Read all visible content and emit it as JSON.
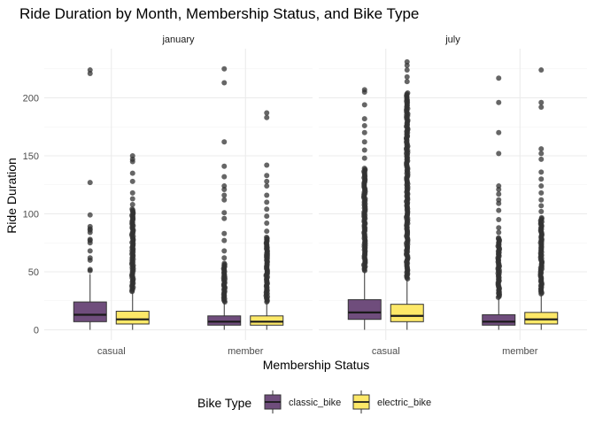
{
  "chart_data": {
    "type": "boxplot",
    "title": "Ride Duration by Month, Membership Status, and Bike Type",
    "xlabel": "Membership Status",
    "ylabel": "Ride Duration",
    "ylim": [
      -8,
      235
    ],
    "yticks": [
      0,
      50,
      100,
      150,
      200
    ],
    "categories": [
      "casual",
      "member"
    ],
    "facets": [
      "january",
      "july"
    ],
    "grid": true,
    "legend": {
      "title": "Bike Type",
      "position": "bottom",
      "items": [
        {
          "label": "classic_bike",
          "color": "#6f4d7c"
        },
        {
          "label": "electric_bike",
          "color": "#fde868"
        }
      ]
    },
    "series": [
      {
        "name": "classic_bike",
        "color": "#6f4d7c"
      },
      {
        "name": "electric_bike",
        "color": "#fde868"
      }
    ],
    "panels": [
      {
        "facet": "january",
        "boxes": [
          {
            "category": "casual",
            "series": "classic_bike",
            "min": 0,
            "q1": 7,
            "median": 13,
            "q3": 24,
            "whisker_high": 48,
            "outliers": [
              51,
              52,
              60,
              62,
              68,
              75,
              77,
              78,
              84,
              86,
              87,
              89,
              99,
              127,
              221,
              224
            ]
          },
          {
            "category": "casual",
            "series": "electric_bike",
            "min": 0,
            "q1": 5,
            "median": 9,
            "q3": 16,
            "whisker_high": 32,
            "outliers_dense": [
              33,
              105
            ],
            "outliers": [
              108,
              113,
              118,
              128,
              135,
              145,
              147,
              150
            ]
          },
          {
            "category": "member",
            "series": "classic_bike",
            "min": 0,
            "q1": 4,
            "median": 7,
            "q3": 12,
            "whisker_high": 23,
            "outliers_dense": [
              24,
              58
            ],
            "outliers": [
              62,
              68,
              77,
              83,
              96,
              101,
              112,
              116,
              121,
              124,
              132,
              141,
              162,
              213,
              225
            ]
          },
          {
            "category": "member",
            "series": "electric_bike",
            "min": 0,
            "q1": 4,
            "median": 7,
            "q3": 12,
            "whisker_high": 23,
            "outliers_dense": [
              24,
              80
            ],
            "outliers": [
              85,
              92,
              98,
              104,
              110,
              116,
              124,
              128,
              133,
              142,
              183,
              187
            ]
          }
        ]
      },
      {
        "facet": "july",
        "boxes": [
          {
            "category": "casual",
            "series": "classic_bike",
            "min": 0,
            "q1": 9,
            "median": 15,
            "q3": 26,
            "whisker_high": 50,
            "outliers_dense": [
              51,
              140
            ],
            "outliers": [
              148,
              155,
              162,
              170,
              176,
              182,
              194,
              205,
              207
            ]
          },
          {
            "category": "casual",
            "series": "electric_bike",
            "min": 0,
            "q1": 7,
            "median": 12,
            "q3": 22,
            "whisker_high": 43,
            "outliers_dense": [
              44,
              205
            ],
            "outliers": [
              214,
              218,
              224,
              228,
              231
            ]
          },
          {
            "category": "member",
            "series": "classic_bike",
            "min": 0,
            "q1": 4,
            "median": 7,
            "q3": 13,
            "whisker_high": 27,
            "outliers_dense": [
              28,
              80
            ],
            "outliers": [
              84,
              88,
              95,
              103,
              109,
              112,
              117,
              121,
              124,
              152,
              170,
              196,
              217
            ]
          },
          {
            "category": "member",
            "series": "electric_bike",
            "min": 0,
            "q1": 5,
            "median": 9,
            "q3": 15,
            "whisker_high": 30,
            "outliers_dense": [
              31,
              97
            ],
            "outliers": [
              102,
              107,
              112,
              118,
              124,
              130,
              136,
              147,
              152,
              156,
              192,
              196,
              224
            ]
          }
        ]
      }
    ]
  }
}
